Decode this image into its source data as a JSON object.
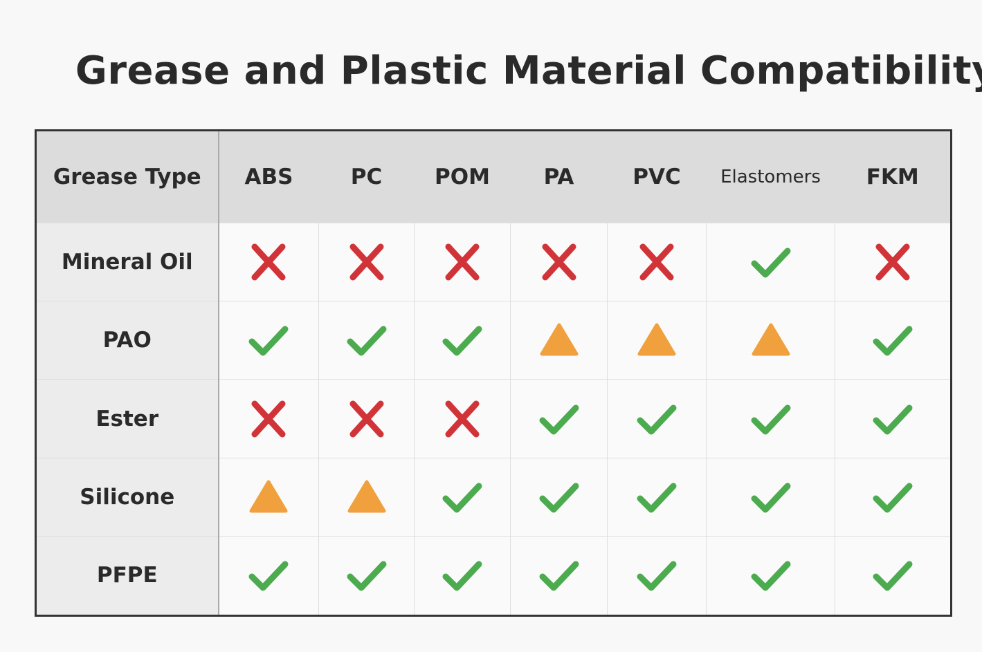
{
  "title": "Grease and Plastic Material Compatibility",
  "table": {
    "header": [
      "Grease Type",
      "ABS",
      "PC",
      "POM",
      "PA",
      "PVC",
      "Elastomers",
      "FKM"
    ],
    "row_labels": [
      "Mineral Oil",
      "PAO",
      "Ester",
      "Silicone",
      "PFPE"
    ]
  }
}
